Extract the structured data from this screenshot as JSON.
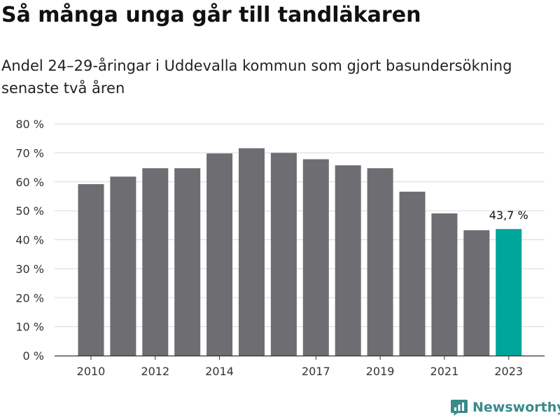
{
  "title": "Så många unga går till tandläkaren",
  "subtitle": "Andel 24–29-åringar i Uddevalla kommun som gjort basundersökning senaste två åren",
  "brand": {
    "name": "Newsworthy",
    "color": "#3a8a8a",
    "icon": "newsworthy-logo-icon"
  },
  "colors": {
    "bar": "#6e6d72",
    "highlight": "#00a69a",
    "grid": "#d9d9d9",
    "axis": "#333333"
  },
  "chart_data": {
    "type": "bar",
    "title": "",
    "xlabel": "",
    "ylabel": "",
    "categories": [
      "2010",
      "2011",
      "2012",
      "2013",
      "2014",
      "2015",
      "2016",
      "2017",
      "2018",
      "2019",
      "2020",
      "2021",
      "2022",
      "2023"
    ],
    "x_tick_labels": [
      "2010",
      "",
      "2012",
      "",
      "2014",
      "",
      "",
      "2017",
      "",
      "2019",
      "",
      "2021",
      "",
      "2023"
    ],
    "values": [
      59.2,
      61.8,
      64.7,
      64.7,
      69.8,
      71.6,
      70.0,
      67.8,
      65.7,
      64.7,
      56.6,
      49.1,
      43.3,
      43.7
    ],
    "highlight_index": 13,
    "annotations": [
      {
        "category": "2023",
        "text": "43,7 %"
      }
    ],
    "ylim": [
      0,
      80
    ],
    "y_ticks": [
      0,
      10,
      20,
      30,
      40,
      50,
      60,
      70,
      80
    ],
    "y_tick_labels": [
      "0 %",
      "10 %",
      "20 %",
      "30 %",
      "40 %",
      "50 %",
      "60 %",
      "70 %",
      "80 %"
    ],
    "grid": true,
    "legend": "none"
  }
}
